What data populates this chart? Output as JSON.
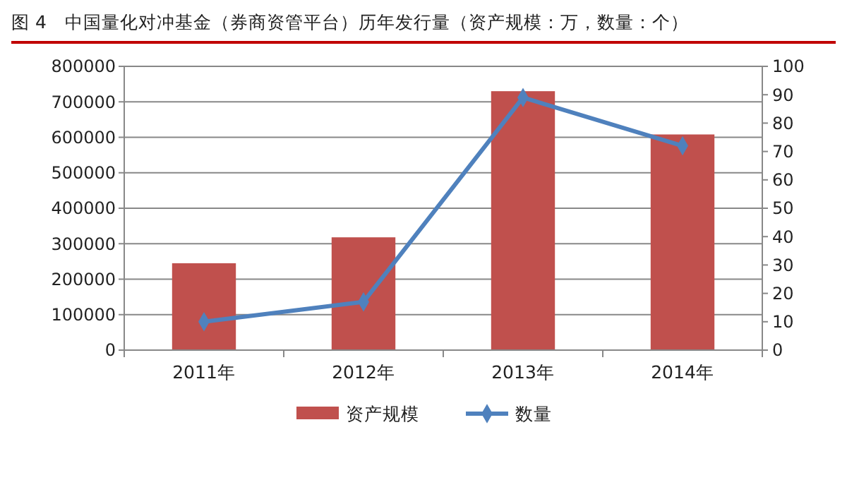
{
  "chart_data": {
    "type": "bar",
    "title": "图 4　中国量化对冲基金（券商资管平台）历年发行量（资产规模：万，数量：个）",
    "categories": [
      "2011年",
      "2012年",
      "2013年",
      "2014年"
    ],
    "series": [
      {
        "name": "资产规模",
        "color": "#c0504d",
        "values": [
          245000,
          318000,
          730000,
          608000
        ]
      },
      {
        "name": "数量",
        "type": "line",
        "axis": "y2",
        "color": "#4f81bd",
        "values": [
          10,
          17,
          89,
          72
        ]
      }
    ],
    "ylim": [
      0,
      800000
    ],
    "yticks": [
      0,
      100000,
      200000,
      300000,
      400000,
      500000,
      600000,
      700000,
      800000
    ],
    "y2lim": [
      0,
      100
    ],
    "y2ticks": [
      0,
      10,
      20,
      30,
      40,
      50,
      60,
      70,
      80,
      90,
      100
    ],
    "grid": "y",
    "legend": "bottom",
    "marker": "diamond"
  }
}
